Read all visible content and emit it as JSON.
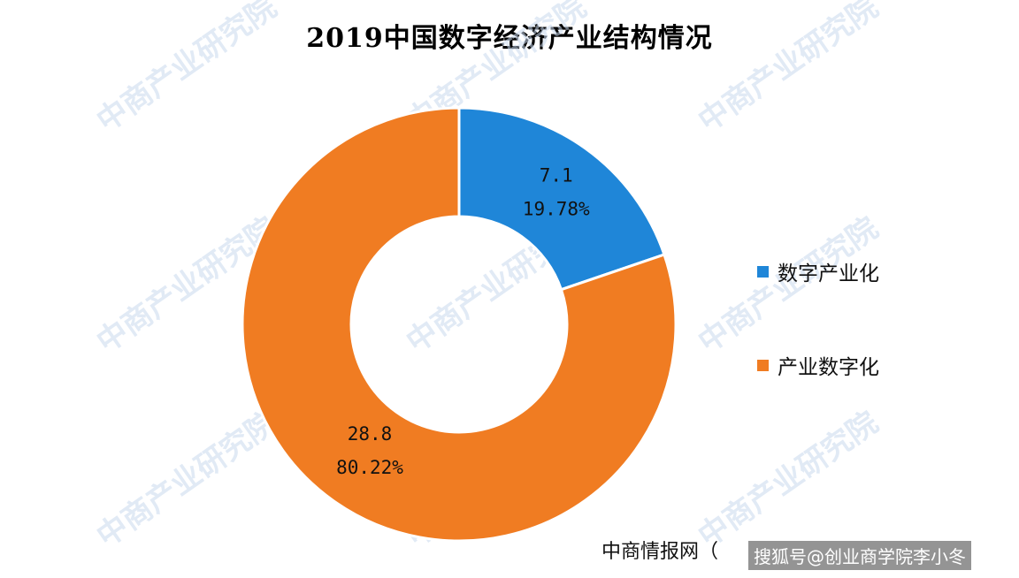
{
  "title": "2019中国数字经济产业结构情况",
  "chart_data": {
    "type": "pie",
    "donut": true,
    "series": [
      {
        "name": "数字产业化",
        "value": 7.1,
        "percent_label": "19.78%",
        "color": "#1f86d8"
      },
      {
        "name": "产业数字化",
        "value": 28.8,
        "percent_label": "80.22%",
        "color": "#f07c22"
      }
    ],
    "legend_placement": "right"
  },
  "source": "中商情报网（",
  "attribution": "搜狐号@创业商学院李小冬",
  "watermark": "中商产业研究院"
}
